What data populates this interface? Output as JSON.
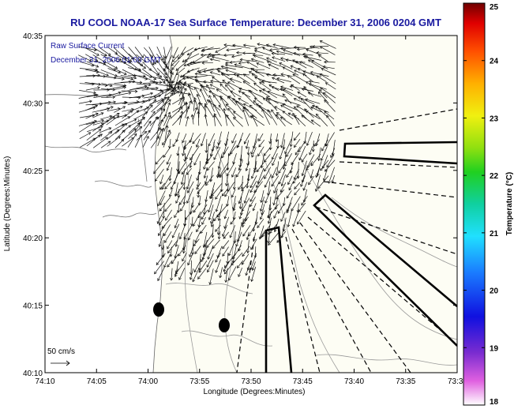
{
  "title": "RU COOL  NOAA-17  Sea Surface Temperature:  December 31, 2006 0204 GMT",
  "legend": {
    "line1": "Raw Surface Current",
    "line2": "December 31, 2006 01:00 GMT"
  },
  "scale": {
    "label": "50 cm/s"
  },
  "axes": {
    "xlabel": "Longitude (Degrees:Minutes)",
    "ylabel": "Latitude (Degrees:Minutes)",
    "xticks": [
      "74:10",
      "74:05",
      "74:00",
      "73:55",
      "73:50",
      "73:45",
      "73:40",
      "73:35",
      "73:3"
    ],
    "yticks": [
      "40:35",
      "40:30",
      "40:25",
      "40:20",
      "40:15",
      "40:10"
    ]
  },
  "colorbar": {
    "label": "Temperature (°C)",
    "ticks": [
      "25",
      "24",
      "23",
      "22",
      "21",
      "20",
      "19",
      "18"
    ],
    "range": [
      18,
      25
    ]
  },
  "colors": {
    "title": "#1a1aa0",
    "land": "#ffffff",
    "sea": "#fdfdf4",
    "arrows": "#111111"
  }
}
